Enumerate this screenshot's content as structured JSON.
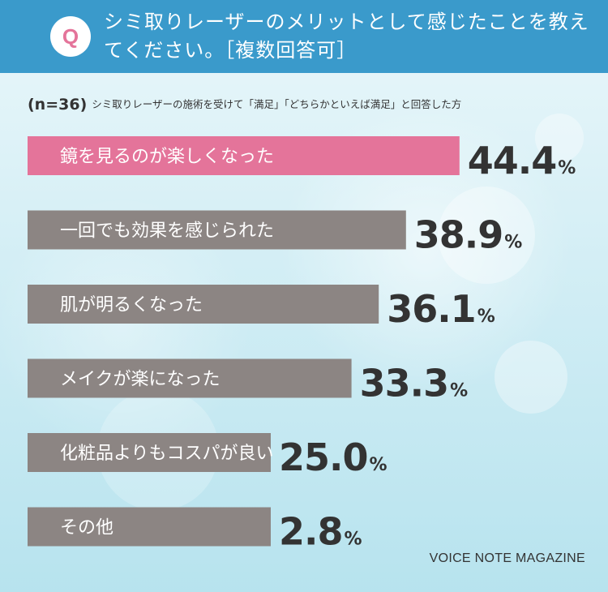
{
  "header": {
    "badge": "Q",
    "question": "シミ取りレーザーのメリットとして感じたことを教えてください。［複数回答可］"
  },
  "subtitle": {
    "n_label": "(n=36)",
    "text": "シミ取りレーザーの施術を受けて「満足」「どちらかといえば満足」と回答した方"
  },
  "footer": "VOICE NOTE MAGAZINE",
  "chart_data": {
    "type": "bar",
    "orientation": "horizontal",
    "categories": [
      "鏡を見るのが楽しくなった",
      "一回でも効果を感じられた",
      "肌が明るくなった",
      "メイクが楽になった",
      "化粧品よりもコスパが良い",
      "その他"
    ],
    "values": [
      44.4,
      38.9,
      36.1,
      33.3,
      25.0,
      2.8
    ],
    "value_labels": [
      "44.4",
      "38.9",
      "36.1",
      "33.3",
      "25.0",
      "2.8"
    ],
    "unit": "%",
    "highlight_index": 0,
    "colors": {
      "highlight": "#e4749a",
      "default": "#8c8583",
      "value_text": "#333333"
    }
  }
}
